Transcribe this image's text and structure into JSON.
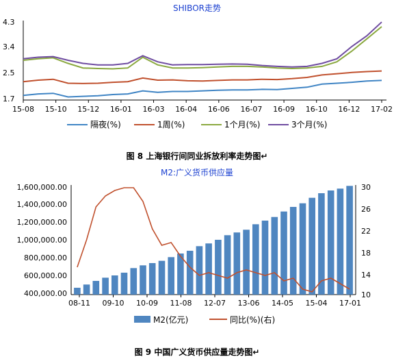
{
  "charts": [
    {
      "title": "SHIBOR走势",
      "caption": "图 8  上海银行间同业拆放利率走势图↵",
      "y_tick_labels": [
        "4.3",
        "3.4",
        "2.5",
        "1.7"
      ]
    },
    {
      "title": "M2:广义货币供应量",
      "caption": "图 9  中国广义货币供应量走势图↵",
      "y_left_tick_labels": [
        "1,600,000.00",
        "1,400,000.00",
        "1,200,000.00",
        "1,000,000.00",
        "800,000.00",
        "600,000.00",
        "400,000.00"
      ],
      "y_right_tick_labels": [
        "30",
        "26",
        "22",
        "18",
        "14",
        "10"
      ]
    }
  ],
  "chart_data": [
    {
      "type": "line",
      "title": "SHIBOR走势",
      "x_tick_labels": [
        "15-08",
        "15-10",
        "15-12",
        "16-01",
        "16-03",
        "16-04",
        "16-06",
        "16-07",
        "16-09",
        "16-10",
        "16-12",
        "17-02"
      ],
      "xlabel": "",
      "ylabel": "",
      "ylim": [
        1.7,
        4.3
      ],
      "legend_position": "bottom",
      "grid": false,
      "colors": {
        "隔夜(%)": "#3f84c4",
        "1周(%)": "#c0502d",
        "1个月(%)": "#8aa83f",
        "3个月(%)": "#6e4ba0"
      },
      "series": [
        {
          "name": "隔夜(%)",
          "values": [
            1.85,
            1.9,
            1.92,
            1.8,
            1.82,
            1.84,
            1.88,
            1.9,
            2.0,
            1.95,
            1.98,
            1.98,
            2.0,
            2.02,
            2.03,
            2.03,
            2.05,
            2.04,
            2.08,
            2.12,
            2.22,
            2.25,
            2.28,
            2.32,
            2.34
          ]
        },
        {
          "name": "1周(%)",
          "values": [
            2.3,
            2.35,
            2.38,
            2.25,
            2.24,
            2.25,
            2.28,
            2.3,
            2.42,
            2.35,
            2.36,
            2.33,
            2.32,
            2.34,
            2.36,
            2.36,
            2.38,
            2.37,
            2.4,
            2.44,
            2.52,
            2.56,
            2.6,
            2.63,
            2.65
          ]
        },
        {
          "name": "1个月(%)",
          "values": [
            3.0,
            3.05,
            3.08,
            2.9,
            2.75,
            2.73,
            2.72,
            2.75,
            3.1,
            2.85,
            2.75,
            2.75,
            2.76,
            2.78,
            2.8,
            2.8,
            2.78,
            2.75,
            2.73,
            2.75,
            2.8,
            2.95,
            3.3,
            3.7,
            4.1
          ]
        },
        {
          "name": "3个月(%)",
          "values": [
            3.05,
            3.1,
            3.12,
            3.0,
            2.9,
            2.85,
            2.85,
            2.9,
            3.15,
            2.95,
            2.85,
            2.86,
            2.86,
            2.87,
            2.88,
            2.87,
            2.83,
            2.8,
            2.78,
            2.8,
            2.9,
            3.05,
            3.45,
            3.8,
            4.25
          ]
        }
      ]
    },
    {
      "type": "bar",
      "title": "M2:广义货币供应量",
      "x_tick_labels": [
        "08-11",
        "09-10",
        "10-09",
        "11-08",
        "12-07",
        "13-06",
        "14-05",
        "15-04",
        "17-01"
      ],
      "ylim_left": [
        400000,
        1600000
      ],
      "ylim_right": [
        10,
        30
      ],
      "legend_position": "bottom",
      "grid": false,
      "colors": {
        "M2(亿元)": "#4f86c0",
        "同比(%)(右)": "#c0502d"
      },
      "series": [
        {
          "name": "M2(亿元)",
          "axis": "left",
          "values": [
            475000,
            510000,
            550000,
            585000,
            610000,
            640000,
            690000,
            720000,
            745000,
            770000,
            810000,
            850000,
            880000,
            930000,
            960000,
            1000000,
            1050000,
            1080000,
            1110000,
            1170000,
            1210000,
            1250000,
            1310000,
            1360000,
            1400000,
            1460000,
            1510000,
            1540000,
            1560000,
            1590000
          ]
        },
        {
          "name": "同比(%)(右)",
          "axis": "right",
          "values": [
            15.0,
            20.0,
            26.0,
            28.0,
            29.0,
            29.5,
            29.5,
            27.0,
            22.0,
            19.0,
            19.5,
            17.0,
            15.0,
            13.5,
            14.0,
            13.5,
            13.0,
            14.0,
            14.5,
            14.0,
            13.5,
            14.0,
            12.5,
            13.0,
            11.0,
            10.5,
            12.5,
            13.0,
            12.0,
            11.0
          ]
        }
      ]
    }
  ]
}
